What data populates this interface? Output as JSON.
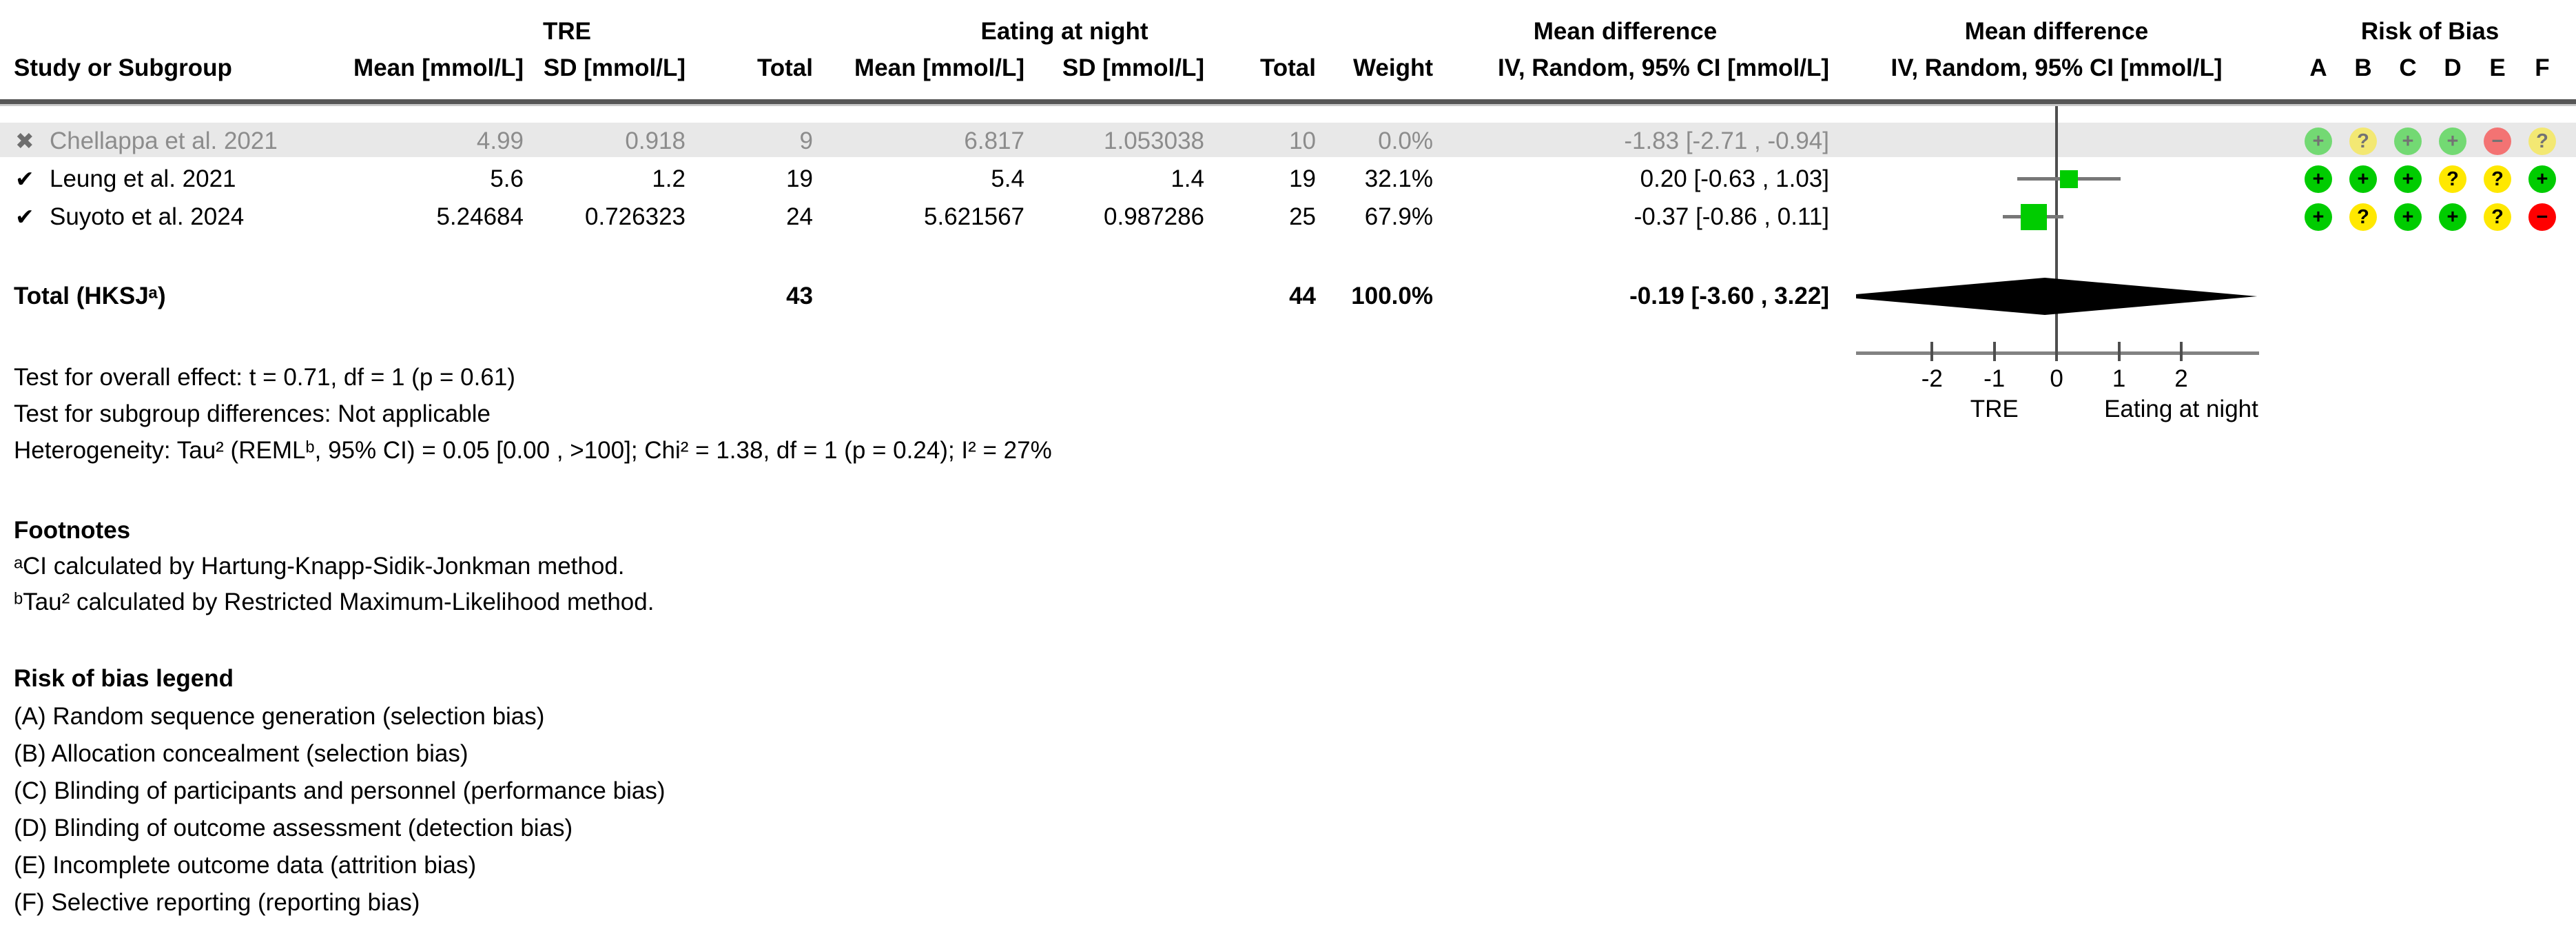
{
  "header": {
    "study_col": "Study or Subgroup",
    "group1": "TRE",
    "group2": "Eating at night",
    "mean_col": "Mean [mmol/L]",
    "sd_col": "SD [mmol/L]",
    "total_col": "Total",
    "weight_col": "Weight",
    "md_title": "Mean difference",
    "md_subtitle": "IV, Random, 95% CI [mmol/L]",
    "rob_title": "Risk of Bias",
    "rob_letters": [
      "A",
      "B",
      "C",
      "D",
      "E",
      "F"
    ]
  },
  "studies": [
    {
      "marker": "✖",
      "name": "Chellappa et al. 2021",
      "mean1": "4.99",
      "sd1": "0.918",
      "n1": "9",
      "mean2": "6.817",
      "sd2": "1.053038",
      "n2": "10",
      "weight": "0.0%",
      "ci_text": "-1.83 [-2.71 , -0.94]",
      "rob": [
        "+",
        "?",
        "+",
        "+",
        "−",
        "?"
      ]
    },
    {
      "marker": "✔",
      "name": "Leung et al. 2021",
      "mean1": "5.6",
      "sd1": "1.2",
      "n1": "19",
      "mean2": "5.4",
      "sd2": "1.4",
      "n2": "19",
      "weight": "32.1%",
      "ci_text": "0.20 [-0.63 , 1.03]",
      "rob": [
        "+",
        "+",
        "+",
        "?",
        "?",
        "+"
      ]
    },
    {
      "marker": "✔",
      "name": "Suyoto et al. 2024",
      "mean1": "5.24684",
      "sd1": "0.726323",
      "n1": "24",
      "mean2": "5.621567",
      "sd2": "0.987286",
      "n2": "25",
      "weight": "67.9%",
      "ci_text": "-0.37 [-0.86 , 0.11]",
      "rob": [
        "+",
        "?",
        "+",
        "+",
        "?",
        "−"
      ]
    }
  ],
  "total_row": {
    "label": "Total (HKSJᵃ)",
    "n1": "43",
    "n2": "44",
    "weight": "100.0%",
    "ci_text": "-0.19 [-3.60 , 3.22]"
  },
  "stats": {
    "overall_effect": "Test for overall effect: t = 0.71, df = 1 (p = 0.61)",
    "subgroup_differences": "Test for subgroup differences: Not applicable",
    "heterogeneity": "Heterogeneity: Tau² (REMLᵇ, 95% CI) = 0.05 [0.00 , >100]; Chi² = 1.38, df = 1 (p = 0.24); I² = 27%"
  },
  "footnotes": {
    "heading": "Footnotes",
    "note_a": "ᵃCI calculated by Hartung-Knapp-Sidik-Jonkman method.",
    "note_b": "ᵇTau² calculated by Restricted Maximum-Likelihood method."
  },
  "rob_legend": {
    "heading": "Risk of bias legend",
    "items": [
      "(A) Random sequence generation (selection bias)",
      "(B) Allocation concealment (selection bias)",
      "(C) Blinding of participants and personnel (performance bias)",
      "(D) Blinding of outcome assessment (detection bias)",
      "(E) Incomplete outcome data (attrition bias)",
      "(F) Selective reporting (reporting bias)"
    ]
  },
  "colors": {
    "rob_low": "#00cc00",
    "rob_unclear": "#ffe800",
    "rob_high": "#ff0000",
    "square": "#00cc00",
    "diamond": "#000000",
    "excluded_band": "#e8e8e8",
    "excluded_text": "#8c8c8c"
  },
  "chart_data": {
    "type": "forest",
    "effect_measure": "Mean difference, IV, Random, 95% CI [mmol/L]",
    "xlim": [
      -3.22,
      3.25
    ],
    "xticks": [
      -2,
      -1,
      0,
      1,
      2
    ],
    "left_label": "TRE",
    "right_label": "Eating at night",
    "caption_anchors": [
      -1,
      2
    ],
    "studies": [
      {
        "name": "Chellappa et al. 2021",
        "included": false,
        "estimate": -1.83,
        "ci": [
          -2.71,
          -0.94
        ],
        "weight_pct": 0.0
      },
      {
        "name": "Leung et al. 2021",
        "included": true,
        "estimate": 0.2,
        "ci": [
          -0.63,
          1.03
        ],
        "weight_pct": 32.1
      },
      {
        "name": "Suyoto et al. 2024",
        "included": true,
        "estimate": -0.37,
        "ci": [
          -0.86,
          0.11
        ],
        "weight_pct": 67.9
      }
    ],
    "total": {
      "label": "Total (HKSJ)",
      "estimate": -0.19,
      "ci": [
        -3.6,
        3.22
      ]
    }
  }
}
